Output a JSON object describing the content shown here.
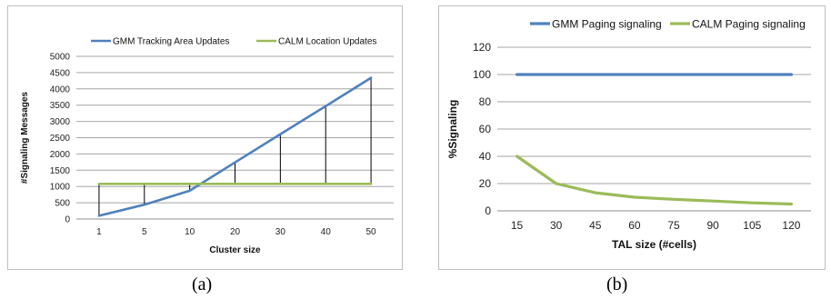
{
  "chart_data": [
    {
      "type": "line",
      "caption": "(a)",
      "categories": [
        "1",
        "5",
        "10",
        "20",
        "30",
        "40",
        "50"
      ],
      "series": [
        {
          "name": "GMM Tracking Area Updates",
          "values": [
            100,
            440,
            870,
            1740,
            2610,
            3470,
            4340
          ],
          "color": "#4f81bd"
        },
        {
          "name": "CALM Location Updates",
          "values": [
            1080,
            1080,
            1080,
            1080,
            1080,
            1080,
            1080
          ],
          "color": "#9bbb59"
        }
      ],
      "xlabel": "Cluster size",
      "ylabel": "#Signaling Messages",
      "yticks": [
        "0",
        "500",
        "1000",
        "1500",
        "2000",
        "2500",
        "3000",
        "3500",
        "4000",
        "4500",
        "5000"
      ],
      "ylim": [
        0,
        5000
      ],
      "grid": true,
      "legend": "top",
      "annotations": "vertical black difference lines between the two series at each cluster size"
    },
    {
      "type": "line",
      "caption": "(b)",
      "categories": [
        "15",
        "30",
        "45",
        "60",
        "75",
        "90",
        "105",
        "120"
      ],
      "series": [
        {
          "name": "GMM Paging signaling",
          "values": [
            100,
            100,
            100,
            100,
            100,
            100,
            100,
            100
          ],
          "color": "#4f81bd"
        },
        {
          "name": "CALM Paging signaling",
          "values": [
            40,
            20,
            13.3,
            10,
            8.5,
            7.2,
            5.9,
            5
          ],
          "color": "#9bbb59"
        }
      ],
      "xlabel": "TAL size (#cells)",
      "ylabel": "%Signaling",
      "yticks": [
        "0",
        "20",
        "40",
        "60",
        "80",
        "100",
        "120"
      ],
      "ylim": [
        0,
        120
      ],
      "grid": true,
      "legend": "top"
    }
  ]
}
